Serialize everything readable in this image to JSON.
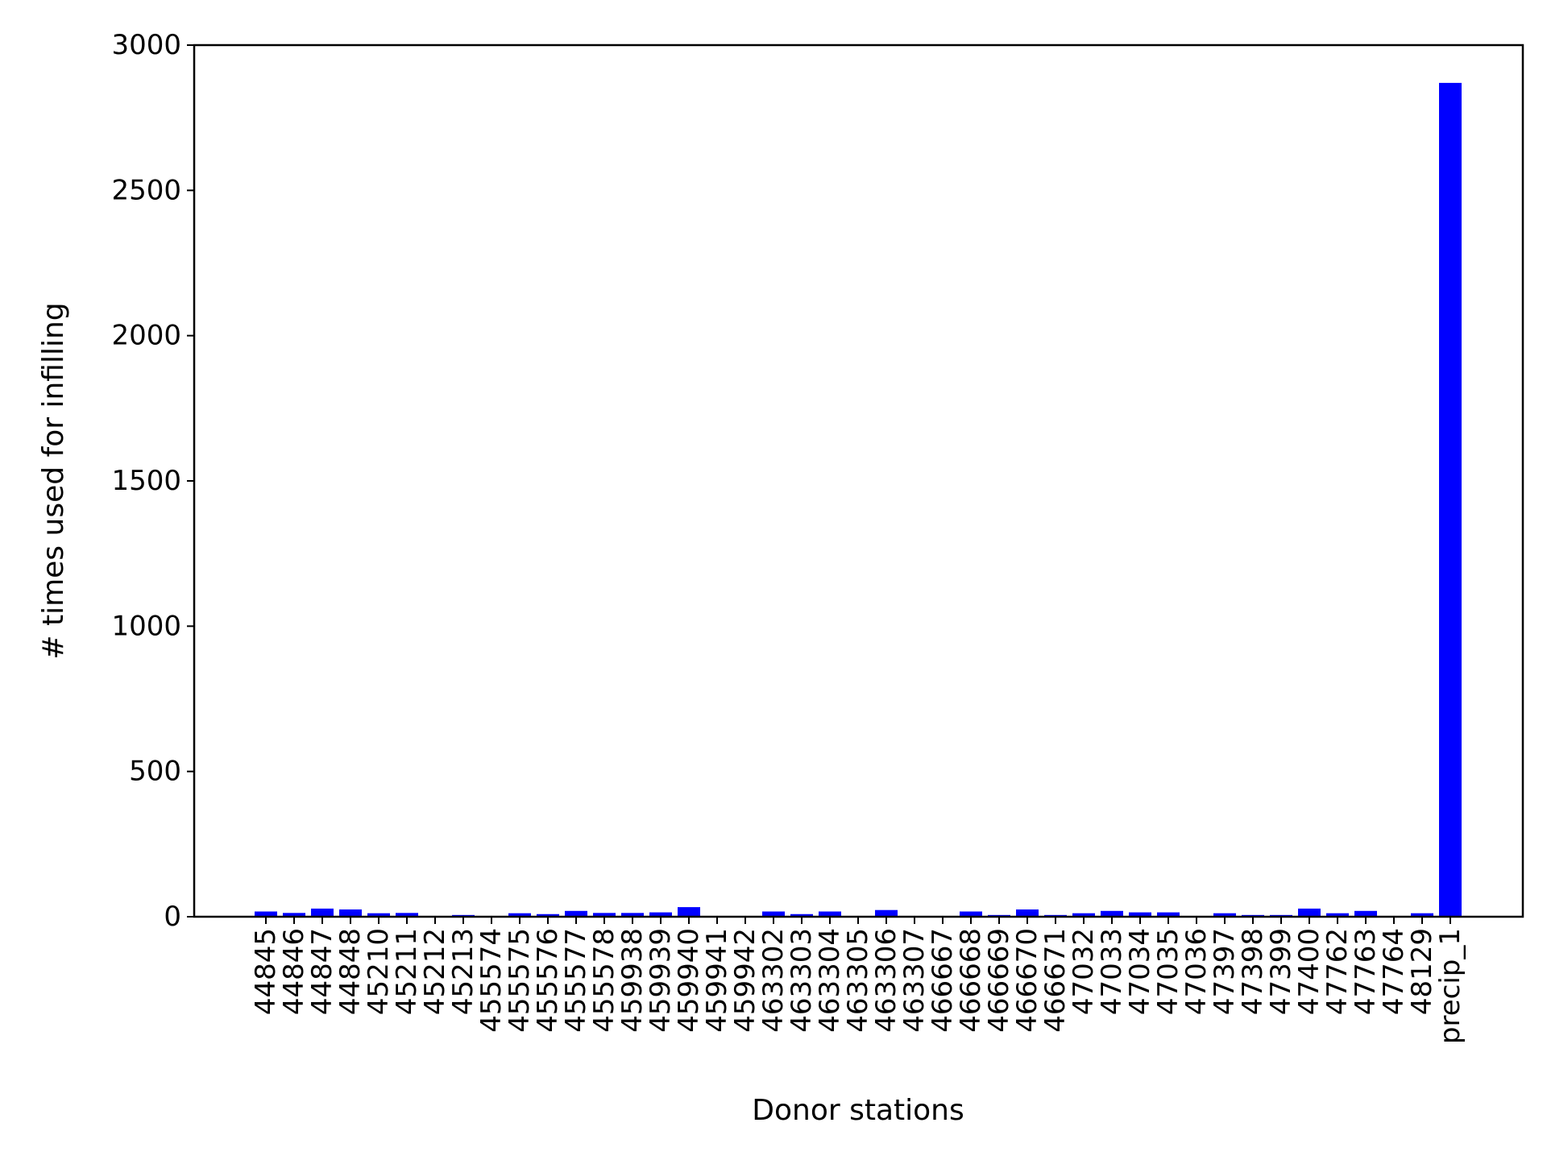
{
  "chart_data": {
    "type": "bar",
    "title": "",
    "xlabel": "Donor stations",
    "ylabel": "# times used for infilling",
    "ylim": [
      0,
      3000
    ],
    "yticks": [
      0,
      500,
      1000,
      1500,
      2000,
      2500,
      3000
    ],
    "grid": false,
    "bar_color": "#0000ff",
    "categories": [
      "44845",
      "44846",
      "44847",
      "44848",
      "45210",
      "45211",
      "45212",
      "45213",
      "455574",
      "455575",
      "455576",
      "455577",
      "455578",
      "459938",
      "459939",
      "459940",
      "459941",
      "459942",
      "463302",
      "463303",
      "463304",
      "463305",
      "463306",
      "463307",
      "466667",
      "466668",
      "466669",
      "466670",
      "466671",
      "47032",
      "47033",
      "47034",
      "47035",
      "47036",
      "47397",
      "47398",
      "47399",
      "47400",
      "47762",
      "47763",
      "47764",
      "48129",
      "precip_1"
    ],
    "tick_labels": [
      "44845",
      "44846",
      "44847",
      "44848",
      "45210",
      "45211",
      "45212",
      "45213",
      "455574",
      "455575",
      "455576",
      "455577",
      "455578",
      "459938",
      "459939",
      "459940",
      "459941",
      "459942",
      "463302",
      "463303",
      "463304",
      "463305",
      "463306",
      "463307",
      "466667",
      "466668",
      "466669",
      "466670",
      "466671",
      "47032",
      "47033",
      "47034",
      "47035",
      "47036",
      "47397",
      "47398",
      "47399",
      "47400",
      "47762",
      "47763",
      "47764",
      "48129",
      "precip_1"
    ],
    "values": [
      18,
      13,
      28,
      25,
      12,
      13,
      0,
      6,
      0,
      12,
      9,
      20,
      13,
      13,
      15,
      33,
      0,
      0,
      18,
      9,
      18,
      0,
      23,
      0,
      0,
      18,
      6,
      25,
      6,
      12,
      20,
      15,
      15,
      0,
      12,
      6,
      6,
      28,
      12,
      20,
      0,
      12,
      2870
    ]
  }
}
